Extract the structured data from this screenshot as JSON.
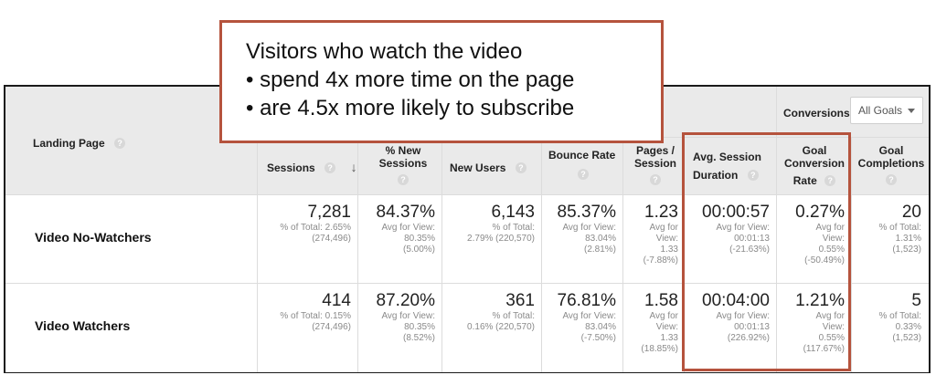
{
  "callout": {
    "lines": [
      "Visitors who watch the video",
      "• spend 4x more time on the page",
      "• are 4.5x more likely to subscribe"
    ]
  },
  "header": {
    "conversions_label": "Conversions",
    "goal_select_value": "All Goals",
    "landing_page": "Landing Page",
    "sessions": "Sessions",
    "new_sessions_1": "% New",
    "new_sessions_2": "Sessions",
    "new_users": "New Users",
    "bounce_rate": "Bounce Rate",
    "pages_1": "Pages /",
    "pages_2": "Session",
    "duration_1": "Avg. Session",
    "duration_2": "Duration",
    "conv_rate_1": "Goal",
    "conv_rate_2": "Conversion",
    "conv_rate_3": "Rate",
    "completions_1": "Goal",
    "completions_2": "Completions",
    "help_glyph": "?",
    "sort_glyph": "↓"
  },
  "rows": [
    {
      "label": "Video No-Watchers",
      "sessions": {
        "value": "7,281",
        "sub1": "% of Total: 2.65%",
        "sub2": "(274,496)"
      },
      "new_sessions": {
        "value": "84.37%",
        "sub1": "Avg for View:",
        "sub2": "80.35%",
        "sub3": "(5.00%)"
      },
      "new_users": {
        "value": "6,143",
        "sub1": "% of Total:",
        "sub2": "2.79% (220,570)"
      },
      "bounce_rate": {
        "value": "85.37%",
        "sub1": "Avg for View:",
        "sub2": "83.04%",
        "sub3": "(2.81%)"
      },
      "pages": {
        "value": "1.23",
        "sub1": "Avg for",
        "sub2": "View:",
        "sub3": "1.33",
        "sub4": "(-7.88%)"
      },
      "duration": {
        "value": "00:00:57",
        "sub1": "Avg for View:",
        "sub2": "00:01:13",
        "sub3": "(-21.63%)"
      },
      "conv_rate": {
        "value": "0.27%",
        "sub1": "Avg for",
        "sub2": "View:",
        "sub3": "0.55%",
        "sub4": "(-50.49%)"
      },
      "completions": {
        "value": "20",
        "sub1": "% of Total:",
        "sub2": "1.31%",
        "sub3": "(1,523)"
      }
    },
    {
      "label": "Video Watchers",
      "sessions": {
        "value": "414",
        "sub1": "% of Total: 0.15%",
        "sub2": "(274,496)"
      },
      "new_sessions": {
        "value": "87.20%",
        "sub1": "Avg for View:",
        "sub2": "80.35%",
        "sub3": "(8.52%)"
      },
      "new_users": {
        "value": "361",
        "sub1": "% of Total:",
        "sub2": "0.16% (220,570)"
      },
      "bounce_rate": {
        "value": "76.81%",
        "sub1": "Avg for View:",
        "sub2": "83.04%",
        "sub3": "(-7.50%)"
      },
      "pages": {
        "value": "1.58",
        "sub1": "Avg for",
        "sub2": "View:",
        "sub3": "1.33",
        "sub4": "(18.85%)"
      },
      "duration": {
        "value": "00:04:00",
        "sub1": "Avg for View:",
        "sub2": "00:01:13",
        "sub3": "(226.92%)"
      },
      "conv_rate": {
        "value": "1.21%",
        "sub1": "Avg for",
        "sub2": "View:",
        "sub3": "0.55%",
        "sub4": "(117.67%)"
      },
      "completions": {
        "value": "5",
        "sub1": "% of Total:",
        "sub2": "0.33%",
        "sub3": "(1,523)"
      }
    }
  ],
  "colors": {
    "highlight": "#b5533d",
    "header_bg": "#eaeaea"
  }
}
